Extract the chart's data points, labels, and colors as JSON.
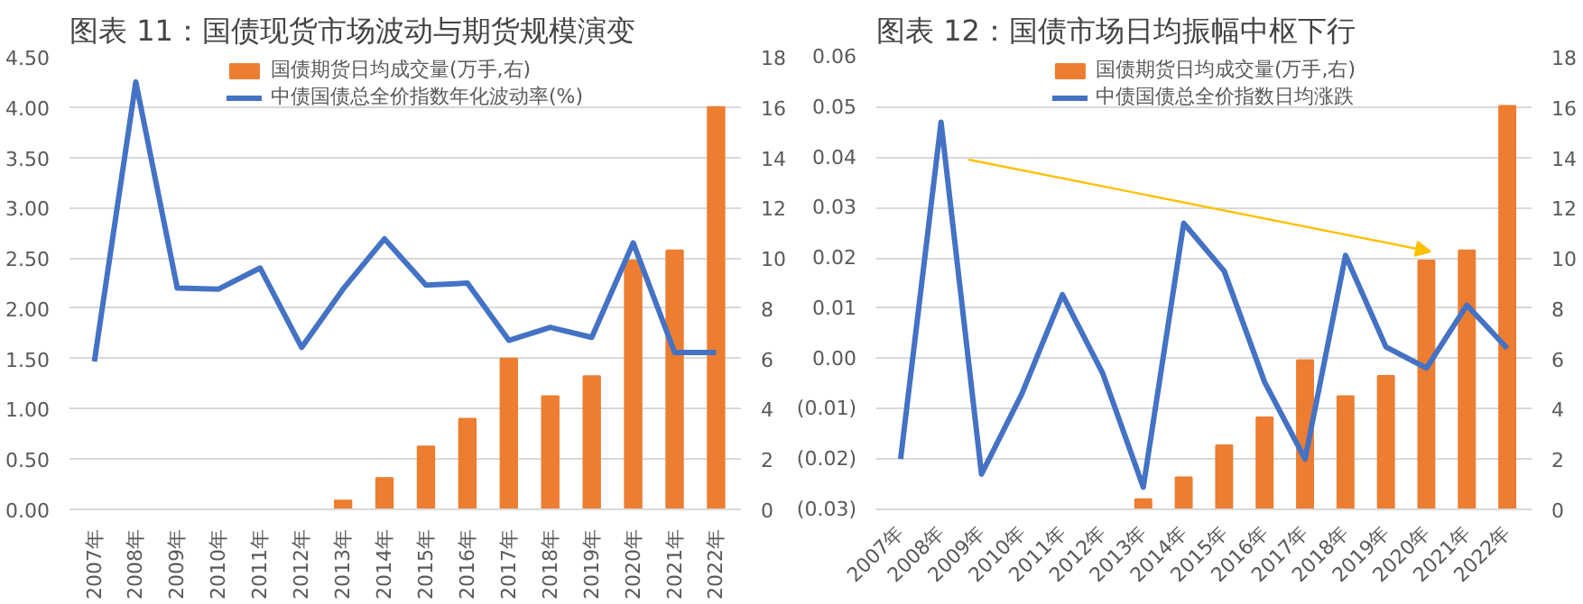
{
  "chart_data": [
    {
      "type": "line",
      "title": "图表 11：国债现货市场波动与期货规模演变",
      "categories": [
        "2007年",
        "2008年",
        "2009年",
        "2010年",
        "2011年",
        "2012年",
        "2013年",
        "2014年",
        "2015年",
        "2016年",
        "2017年",
        "2018年",
        "2019年",
        "2020年",
        "2021年",
        "2022年"
      ],
      "series": [
        {
          "name": "国债期货日均成交量(万手,右)",
          "type": "bar",
          "axis": "y2",
          "color": "#ed7d31",
          "values": [
            null,
            null,
            null,
            null,
            null,
            null,
            0.35,
            1.25,
            2.5,
            3.6,
            6.0,
            4.5,
            5.3,
            9.9,
            10.3,
            16.0
          ]
        },
        {
          "name": "中债国债总全价指数年化波动率(%)",
          "color": "#4472c4",
          "values": [
            1.47,
            4.25,
            2.2,
            2.19,
            2.4,
            1.61,
            2.19,
            2.69,
            2.23,
            2.25,
            1.68,
            1.81,
            1.71,
            2.65,
            1.56,
            1.56
          ]
        }
      ],
      "ylim": [
        0,
        4.5
      ],
      "yticks": [
        {
          "value": 0,
          "label": "0.00"
        },
        {
          "value": 0.5,
          "label": "0.50"
        },
        {
          "value": 1,
          "label": "1.00"
        },
        {
          "value": 1.5,
          "label": "1.50"
        },
        {
          "value": 2,
          "label": "2.00"
        },
        {
          "value": 2.5,
          "label": "2.50"
        },
        {
          "value": 3,
          "label": "3.00"
        },
        {
          "value": 3.5,
          "label": "3.50"
        },
        {
          "value": 4,
          "label": "4.00"
        },
        {
          "value": 4.5,
          "label": "4.50"
        }
      ],
      "y2lim": [
        0,
        18
      ],
      "y2ticks": [
        0,
        2,
        4,
        6,
        8,
        10,
        12,
        14,
        16,
        18
      ],
      "grid": "y",
      "legend": "top"
    },
    {
      "type": "line",
      "title": "图表 12：国债市场日均振幅中枢下行",
      "categories": [
        "2007年",
        "2008年",
        "2009年",
        "2010年",
        "2011年",
        "2012年",
        "2013年",
        "2014年",
        "2015年",
        "2016年",
        "2017年",
        "2018年",
        "2019年",
        "2020年",
        "2021年",
        "2022年"
      ],
      "series": [
        {
          "name": "国债期货日均成交量(万手,右)",
          "type": "bar",
          "axis": "y2",
          "color": "#ed7d31",
          "values": [
            null,
            null,
            null,
            null,
            null,
            null,
            0.4,
            1.27,
            2.55,
            3.66,
            5.93,
            4.5,
            5.31,
            9.9,
            10.3,
            16.05
          ]
        },
        {
          "name": "中债国债总全价指数日均涨跌",
          "color": "#4472c4",
          "values": [
            -0.02,
            0.047,
            -0.023,
            -0.007,
            0.0127,
            -0.003,
            -0.0256,
            0.0269,
            0.0174,
            -0.0047,
            -0.02,
            0.0205,
            0.0023,
            -0.0019,
            0.0106,
            0.002
          ]
        }
      ],
      "ylim": [
        -0.03,
        0.06
      ],
      "yticks": [
        {
          "value": -0.03,
          "label": "(0.03)"
        },
        {
          "value": -0.02,
          "label": "(0.02)"
        },
        {
          "value": -0.01,
          "label": "(0.01)"
        },
        {
          "value": 0,
          "label": "0.00"
        },
        {
          "value": 0.01,
          "label": "0.01"
        },
        {
          "value": 0.02,
          "label": "0.02"
        },
        {
          "value": 0.03,
          "label": "0.03"
        },
        {
          "value": 0.04,
          "label": "0.04"
        },
        {
          "value": 0.05,
          "label": "0.05"
        },
        {
          "value": 0.06,
          "label": "0.06"
        }
      ],
      "y2lim": [
        0,
        18
      ],
      "y2ticks": [
        0,
        2,
        4,
        6,
        8,
        10,
        12,
        14,
        16,
        18
      ],
      "grid": "y",
      "legend": "top"
    }
  ]
}
